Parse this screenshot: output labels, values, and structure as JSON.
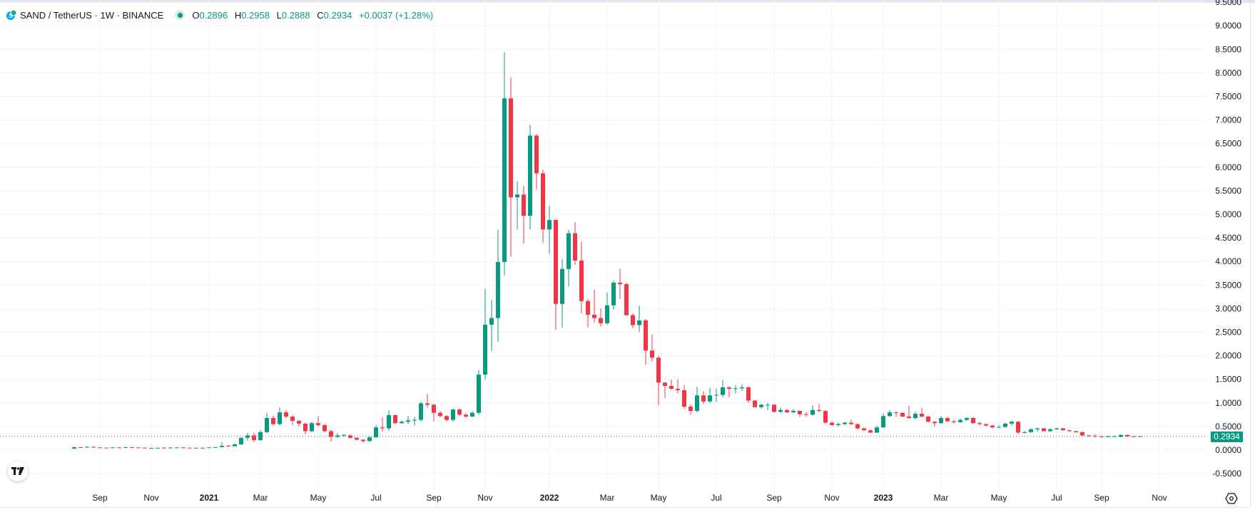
{
  "header": {
    "symbol": "SAND / TetherUS · 1W · BINANCE",
    "open_label": "O",
    "open": "0.2896",
    "high_label": "H",
    "high": "0.2958",
    "low_label": "L",
    "low": "0.2888",
    "close_label": "C",
    "close": "0.2934",
    "change": "+0.0037 (+1.28%)"
  },
  "last_price_tag": "0.2934",
  "colors": {
    "up": "#089981",
    "down": "#F23645",
    "grid": "#f0f3fa",
    "text": "#131722"
  },
  "chart_data": {
    "type": "candlestick",
    "title": "SAND / TetherUS · 1W · BINANCE",
    "interval": "1W",
    "ylim": [
      -0.5,
      9.5
    ],
    "y_ticks": [
      "-0.5000",
      "0.0000",
      "0.5000",
      "1.0000",
      "1.5000",
      "2.0000",
      "2.5000",
      "3.0000",
      "3.5000",
      "4.0000",
      "4.5000",
      "5.0000",
      "5.5000",
      "6.0000",
      "6.5000",
      "7.0000",
      "7.5000",
      "8.0000",
      "8.5000",
      "9.0000",
      "9.5000"
    ],
    "x_ticks": [
      {
        "label": "Sep",
        "week": 4,
        "bold": false
      },
      {
        "label": "Nov",
        "week": 12,
        "bold": false
      },
      {
        "label": "2021",
        "week": 21,
        "bold": true
      },
      {
        "label": "Mar",
        "week": 29,
        "bold": false
      },
      {
        "label": "May",
        "week": 38,
        "bold": false
      },
      {
        "label": "Jul",
        "week": 47,
        "bold": false
      },
      {
        "label": "Sep",
        "week": 56,
        "bold": false
      },
      {
        "label": "Nov",
        "week": 64,
        "bold": false
      },
      {
        "label": "2022",
        "week": 74,
        "bold": true
      },
      {
        "label": "Mar",
        "week": 83,
        "bold": false
      },
      {
        "label": "May",
        "week": 91,
        "bold": false
      },
      {
        "label": "Jul",
        "week": 100,
        "bold": false
      },
      {
        "label": "Sep",
        "week": 109,
        "bold": false
      },
      {
        "label": "Nov",
        "week": 118,
        "bold": false
      },
      {
        "label": "2023",
        "week": 126,
        "bold": true
      },
      {
        "label": "Mar",
        "week": 135,
        "bold": false
      },
      {
        "label": "May",
        "week": 144,
        "bold": false
      },
      {
        "label": "Jul",
        "week": 153,
        "bold": false
      },
      {
        "label": "Sep",
        "week": 160,
        "bold": false
      },
      {
        "label": "Nov",
        "week": 169,
        "bold": false
      }
    ],
    "last_price": 0.2934,
    "ohlc": [
      [
        0.03,
        0.07,
        0.02,
        0.06
      ],
      [
        0.06,
        0.065,
        0.05,
        0.055
      ],
      [
        0.055,
        0.075,
        0.05,
        0.07
      ],
      [
        0.07,
        0.08,
        0.05,
        0.055
      ],
      [
        0.055,
        0.06,
        0.045,
        0.05
      ],
      [
        0.05,
        0.055,
        0.04,
        0.045
      ],
      [
        0.045,
        0.06,
        0.04,
        0.055
      ],
      [
        0.055,
        0.06,
        0.045,
        0.05
      ],
      [
        0.05,
        0.065,
        0.045,
        0.06
      ],
      [
        0.06,
        0.065,
        0.05,
        0.055
      ],
      [
        0.055,
        0.06,
        0.045,
        0.05
      ],
      [
        0.05,
        0.055,
        0.04,
        0.045
      ],
      [
        0.045,
        0.05,
        0.04,
        0.045
      ],
      [
        0.045,
        0.05,
        0.04,
        0.048
      ],
      [
        0.05,
        0.06,
        0.045,
        0.048
      ],
      [
        0.048,
        0.06,
        0.04,
        0.052
      ],
      [
        0.052,
        0.06,
        0.045,
        0.055
      ],
      [
        0.055,
        0.065,
        0.05,
        0.05
      ],
      [
        0.05,
        0.055,
        0.045,
        0.046
      ],
      [
        0.046,
        0.05,
        0.042,
        0.048
      ],
      [
        0.048,
        0.055,
        0.04,
        0.046
      ],
      [
        0.048,
        0.06,
        0.045,
        0.058
      ],
      [
        0.058,
        0.065,
        0.05,
        0.062
      ],
      [
        0.062,
        0.17,
        0.06,
        0.09
      ],
      [
        0.09,
        0.11,
        0.075,
        0.08
      ],
      [
        0.08,
        0.14,
        0.075,
        0.12
      ],
      [
        0.12,
        0.27,
        0.11,
        0.26
      ],
      [
        0.26,
        0.36,
        0.2,
        0.31
      ],
      [
        0.31,
        0.37,
        0.17,
        0.21
      ],
      [
        0.21,
        0.42,
        0.2,
        0.38
      ],
      [
        0.38,
        0.79,
        0.36,
        0.68
      ],
      [
        0.68,
        0.73,
        0.52,
        0.55
      ],
      [
        0.55,
        0.9,
        0.52,
        0.8
      ],
      [
        0.8,
        0.85,
        0.68,
        0.71
      ],
      [
        0.71,
        0.74,
        0.53,
        0.62
      ],
      [
        0.62,
        0.64,
        0.5,
        0.56
      ],
      [
        0.56,
        0.58,
        0.33,
        0.4
      ],
      [
        0.4,
        0.6,
        0.38,
        0.57
      ],
      [
        0.57,
        0.72,
        0.5,
        0.53
      ],
      [
        0.53,
        0.55,
        0.38,
        0.4
      ],
      [
        0.4,
        0.43,
        0.18,
        0.28
      ],
      [
        0.28,
        0.36,
        0.26,
        0.31
      ],
      [
        0.31,
        0.34,
        0.28,
        0.32
      ],
      [
        0.31,
        0.33,
        0.24,
        0.26
      ],
      [
        0.26,
        0.27,
        0.2,
        0.22
      ],
      [
        0.22,
        0.23,
        0.16,
        0.19
      ],
      [
        0.19,
        0.29,
        0.18,
        0.27
      ],
      [
        0.27,
        0.53,
        0.26,
        0.48
      ],
      [
        0.48,
        0.69,
        0.39,
        0.46
      ],
      [
        0.46,
        0.84,
        0.4,
        0.74
      ],
      [
        0.74,
        0.76,
        0.55,
        0.57
      ],
      [
        0.57,
        0.63,
        0.56,
        0.6
      ],
      [
        0.6,
        0.72,
        0.55,
        0.63
      ],
      [
        0.63,
        0.7,
        0.52,
        0.64
      ],
      [
        0.64,
        1.03,
        0.6,
        0.99
      ],
      [
        0.99,
        1.19,
        0.9,
        0.96
      ],
      [
        0.96,
        0.98,
        0.6,
        0.79
      ],
      [
        0.79,
        0.83,
        0.7,
        0.72
      ],
      [
        0.72,
        0.74,
        0.6,
        0.64
      ],
      [
        0.64,
        0.88,
        0.6,
        0.86
      ],
      [
        0.86,
        0.88,
        0.72,
        0.75
      ],
      [
        0.75,
        0.79,
        0.68,
        0.71
      ],
      [
        0.71,
        0.82,
        0.7,
        0.79
      ],
      [
        0.79,
        1.7,
        0.75,
        1.6
      ],
      [
        1.6,
        3.42,
        1.5,
        2.66
      ],
      [
        2.66,
        3.18,
        2.1,
        2.8
      ],
      [
        2.8,
        4.67,
        2.3,
        3.99
      ],
      [
        3.99,
        8.43,
        3.7,
        7.46
      ],
      [
        7.46,
        7.9,
        4.1,
        5.36
      ],
      [
        5.36,
        5.7,
        4.68,
        5.42
      ],
      [
        5.42,
        5.6,
        4.38,
        4.97
      ],
      [
        4.97,
        6.9,
        4.68,
        6.67
      ],
      [
        6.67,
        6.7,
        5.53,
        5.87
      ],
      [
        5.87,
        5.95,
        4.4,
        4.68
      ],
      [
        4.68,
        5.18,
        4.17,
        4.88
      ],
      [
        4.88,
        4.9,
        2.55,
        3.1
      ],
      [
        3.1,
        4.05,
        2.6,
        3.84
      ],
      [
        3.84,
        4.67,
        3.47,
        4.6
      ],
      [
        4.6,
        4.83,
        3.93,
        4.02
      ],
      [
        4.02,
        4.42,
        2.9,
        3.16
      ],
      [
        3.16,
        3.2,
        2.6,
        2.87
      ],
      [
        2.87,
        3.4,
        2.7,
        2.8
      ],
      [
        2.8,
        3.0,
        2.62,
        2.69
      ],
      [
        2.69,
        3.34,
        2.66,
        3.07
      ],
      [
        3.07,
        3.6,
        2.98,
        3.55
      ],
      [
        3.55,
        3.84,
        3.2,
        3.52
      ],
      [
        3.52,
        3.55,
        2.85,
        2.86
      ],
      [
        2.86,
        2.9,
        2.58,
        2.65
      ],
      [
        2.65,
        3.07,
        2.5,
        2.75
      ],
      [
        2.75,
        2.78,
        1.81,
        2.11
      ],
      [
        2.11,
        2.45,
        1.88,
        1.96
      ],
      [
        1.96,
        2.0,
        0.95,
        1.43
      ],
      [
        1.43,
        1.44,
        1.1,
        1.36
      ],
      [
        1.36,
        1.5,
        1.28,
        1.3
      ],
      [
        1.3,
        1.5,
        1.2,
        1.27
      ],
      [
        1.27,
        1.38,
        0.88,
        0.92
      ],
      [
        0.92,
        0.97,
        0.75,
        0.83
      ],
      [
        0.83,
        1.34,
        0.8,
        1.16
      ],
      [
        1.16,
        1.25,
        0.97,
        1.03
      ],
      [
        1.03,
        1.32,
        1.0,
        1.16
      ],
      [
        1.16,
        1.3,
        1.02,
        1.17
      ],
      [
        1.17,
        1.48,
        1.12,
        1.33
      ],
      [
        1.33,
        1.35,
        1.12,
        1.3
      ],
      [
        1.3,
        1.38,
        1.2,
        1.31
      ],
      [
        1.31,
        1.4,
        1.25,
        1.33
      ],
      [
        1.33,
        1.36,
        1.0,
        1.05
      ],
      [
        1.05,
        1.06,
        0.9,
        0.91
      ],
      [
        0.91,
        0.98,
        0.88,
        0.96
      ],
      [
        0.96,
        1.0,
        0.85,
        0.96
      ],
      [
        0.96,
        0.98,
        0.8,
        0.81
      ],
      [
        0.81,
        0.9,
        0.78,
        0.85
      ],
      [
        0.85,
        0.87,
        0.79,
        0.8
      ],
      [
        0.8,
        0.87,
        0.78,
        0.83
      ],
      [
        0.83,
        0.84,
        0.7,
        0.76
      ],
      [
        0.76,
        0.8,
        0.7,
        0.75
      ],
      [
        0.75,
        0.95,
        0.73,
        0.85
      ],
      [
        0.85,
        0.98,
        0.8,
        0.83
      ],
      [
        0.83,
        0.84,
        0.56,
        0.58
      ],
      [
        0.58,
        0.61,
        0.52,
        0.53
      ],
      [
        0.53,
        0.58,
        0.5,
        0.55
      ],
      [
        0.55,
        0.6,
        0.53,
        0.58
      ],
      [
        0.58,
        0.65,
        0.53,
        0.55
      ],
      [
        0.55,
        0.56,
        0.43,
        0.46
      ],
      [
        0.46,
        0.48,
        0.4,
        0.42
      ],
      [
        0.42,
        0.44,
        0.36,
        0.37
      ],
      [
        0.37,
        0.52,
        0.36,
        0.48
      ],
      [
        0.48,
        0.78,
        0.47,
        0.72
      ],
      [
        0.72,
        0.85,
        0.7,
        0.8
      ],
      [
        0.8,
        0.82,
        0.7,
        0.79
      ],
      [
        0.79,
        0.8,
        0.7,
        0.71
      ],
      [
        0.71,
        0.94,
        0.66,
        0.68
      ],
      [
        0.68,
        0.82,
        0.65,
        0.77
      ],
      [
        0.77,
        0.9,
        0.7,
        0.71
      ],
      [
        0.71,
        0.73,
        0.59,
        0.6
      ],
      [
        0.6,
        0.62,
        0.5,
        0.57
      ],
      [
        0.57,
        0.72,
        0.56,
        0.68
      ],
      [
        0.68,
        0.7,
        0.6,
        0.61
      ],
      [
        0.61,
        0.64,
        0.56,
        0.59
      ],
      [
        0.59,
        0.67,
        0.58,
        0.64
      ],
      [
        0.64,
        0.7,
        0.62,
        0.68
      ],
      [
        0.68,
        0.7,
        0.55,
        0.57
      ],
      [
        0.57,
        0.6,
        0.53,
        0.55
      ],
      [
        0.55,
        0.56,
        0.5,
        0.52
      ],
      [
        0.52,
        0.53,
        0.46,
        0.48
      ],
      [
        0.48,
        0.53,
        0.47,
        0.49
      ],
      [
        0.49,
        0.58,
        0.47,
        0.56
      ],
      [
        0.56,
        0.63,
        0.52,
        0.6
      ],
      [
        0.6,
        0.62,
        0.33,
        0.37
      ],
      [
        0.37,
        0.4,
        0.35,
        0.38
      ],
      [
        0.38,
        0.46,
        0.37,
        0.44
      ],
      [
        0.44,
        0.47,
        0.39,
        0.46
      ],
      [
        0.46,
        0.47,
        0.39,
        0.4
      ],
      [
        0.4,
        0.47,
        0.39,
        0.44
      ],
      [
        0.44,
        0.47,
        0.43,
        0.46
      ],
      [
        0.46,
        0.47,
        0.41,
        0.42
      ],
      [
        0.42,
        0.43,
        0.39,
        0.4
      ],
      [
        0.4,
        0.41,
        0.37,
        0.38
      ],
      [
        0.38,
        0.39,
        0.29,
        0.31
      ],
      [
        0.31,
        0.32,
        0.28,
        0.3
      ],
      [
        0.3,
        0.33,
        0.27,
        0.29
      ],
      [
        0.29,
        0.3,
        0.26,
        0.28
      ],
      [
        0.28,
        0.31,
        0.27,
        0.29
      ],
      [
        0.29,
        0.3,
        0.27,
        0.295
      ],
      [
        0.28,
        0.33,
        0.27,
        0.32
      ],
      [
        0.32,
        0.33,
        0.28,
        0.29
      ],
      [
        0.29,
        0.3,
        0.27,
        0.2896
      ],
      [
        0.2896,
        0.2958,
        0.2888,
        0.2934
      ]
    ]
  }
}
